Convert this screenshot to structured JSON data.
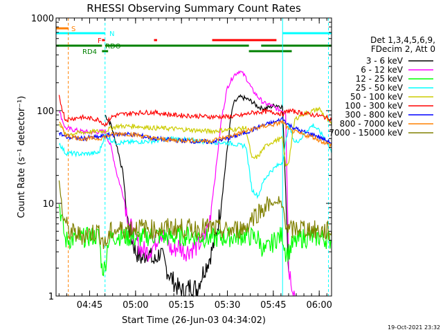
{
  "chart_data": {
    "type": "line",
    "title": "RHESSI Observing Summary Count Rates",
    "xlabel": "Start Time (26-Jun-03 04:34:02)",
    "ylabel": "Count Rate (s⁻¹ detector⁻¹)",
    "y_scale": "log",
    "ylim": [
      1,
      1000
    ],
    "xlim_minutes": [
      0,
      90
    ],
    "y_ticks": [
      {
        "value": 1,
        "label": "1"
      },
      {
        "value": 10,
        "label": "10"
      },
      {
        "value": 100,
        "label": "100"
      },
      {
        "value": 1000,
        "label": "1000"
      }
    ],
    "x_ticks": [
      {
        "value": 10.97,
        "label": "04:45"
      },
      {
        "value": 25.97,
        "label": "05:00"
      },
      {
        "value": 40.97,
        "label": "05:15"
      },
      {
        "value": 55.97,
        "label": "05:30"
      },
      {
        "value": 70.97,
        "label": "05:45"
      },
      {
        "value": 85.97,
        "label": "06:00"
      }
    ],
    "legend_header": [
      "Det 1,3,4,5,6,9,",
      "FDecim 2, Att 0"
    ],
    "series": [
      {
        "name": "3 - 6 keV",
        "color": "#000000",
        "points": [
          [
            16,
            90
          ],
          [
            18,
            70
          ],
          [
            20,
            40
          ],
          [
            22,
            20
          ],
          [
            23,
            8
          ],
          [
            24,
            5
          ],
          [
            26,
            3
          ],
          [
            28,
            2.5
          ],
          [
            30,
            3
          ],
          [
            32,
            2.3
          ],
          [
            34,
            3
          ],
          [
            36,
            2
          ],
          [
            38,
            1.5
          ],
          [
            40,
            1.2
          ],
          [
            42,
            1.1
          ],
          [
            44,
            1.3
          ],
          [
            46,
            1.2
          ],
          [
            48,
            1.8
          ],
          [
            50,
            2.5
          ],
          [
            52,
            4
          ],
          [
            54,
            10
          ],
          [
            56,
            40
          ],
          [
            57,
            80
          ],
          [
            58,
            120
          ],
          [
            60,
            140
          ],
          [
            62,
            135
          ],
          [
            64,
            125
          ],
          [
            66,
            110
          ],
          [
            68,
            105
          ],
          [
            70,
            110
          ],
          [
            72,
            115
          ],
          [
            74,
            110
          ],
          [
            76,
            1.8
          ]
        ]
      },
      {
        "name": "6 - 12 keV",
        "color": "#ff00ff",
        "points": [
          [
            1,
            100
          ],
          [
            3,
            65
          ],
          [
            8,
            60
          ],
          [
            12,
            58
          ],
          [
            16,
            60
          ],
          [
            18,
            40
          ],
          [
            20,
            20
          ],
          [
            22,
            12
          ],
          [
            24,
            6
          ],
          [
            26,
            4
          ],
          [
            28,
            3.2
          ],
          [
            30,
            3
          ],
          [
            32,
            3.5
          ],
          [
            34,
            5
          ],
          [
            36,
            4
          ],
          [
            38,
            3
          ],
          [
            40,
            3.5
          ],
          [
            42,
            3
          ],
          [
            44,
            3.2
          ],
          [
            46,
            3.4
          ],
          [
            48,
            4
          ],
          [
            50,
            6
          ],
          [
            52,
            20
          ],
          [
            54,
            80
          ],
          [
            56,
            180
          ],
          [
            58,
            240
          ],
          [
            60,
            270
          ],
          [
            62,
            230
          ],
          [
            64,
            170
          ],
          [
            66,
            140
          ],
          [
            68,
            120
          ],
          [
            70,
            115
          ],
          [
            72,
            105
          ],
          [
            74,
            100
          ],
          [
            75,
            95
          ],
          [
            76,
            2
          ],
          [
            78,
            1
          ]
        ]
      },
      {
        "name": "12 - 25 keV",
        "color": "#00ff00",
        "points": [
          [
            1,
            10
          ],
          [
            3,
            4
          ],
          [
            8,
            4.2
          ],
          [
            14,
            4.5
          ],
          [
            15,
            2
          ],
          [
            16,
            2
          ],
          [
            17,
            4
          ],
          [
            20,
            4.5
          ],
          [
            26,
            4.2
          ],
          [
            32,
            4.5
          ],
          [
            38,
            4.3
          ],
          [
            44,
            4.5
          ],
          [
            50,
            4.2
          ],
          [
            56,
            4.3
          ],
          [
            62,
            4.5
          ],
          [
            66,
            4.2
          ],
          [
            68,
            3
          ],
          [
            70,
            3.5
          ],
          [
            72,
            4.2
          ],
          [
            74,
            4.5
          ],
          [
            75,
            3
          ],
          [
            76,
            3
          ],
          [
            77,
            3.5
          ],
          [
            80,
            4.2
          ],
          [
            86,
            4.3
          ],
          [
            90,
            4
          ]
        ]
      },
      {
        "name": "25 - 50 keV",
        "color": "#00ffff",
        "points": [
          [
            1,
            45
          ],
          [
            3,
            35
          ],
          [
            8,
            34
          ],
          [
            14,
            35
          ],
          [
            16,
            55
          ],
          [
            18,
            48
          ],
          [
            20,
            45
          ],
          [
            26,
            46
          ],
          [
            32,
            47
          ],
          [
            38,
            50
          ],
          [
            44,
            48
          ],
          [
            50,
            46
          ],
          [
            56,
            45
          ],
          [
            58,
            44
          ],
          [
            60,
            42
          ],
          [
            62,
            42
          ],
          [
            64,
            14
          ],
          [
            66,
            12
          ],
          [
            68,
            18
          ],
          [
            70,
            22
          ],
          [
            72,
            25
          ],
          [
            74,
            28
          ],
          [
            76,
            70
          ],
          [
            78,
            45
          ],
          [
            80,
            50
          ],
          [
            82,
            62
          ],
          [
            84,
            70
          ],
          [
            86,
            60
          ],
          [
            88,
            50
          ],
          [
            90,
            35
          ]
        ]
      },
      {
        "name": "50 - 100 keV",
        "color": "#cccc00",
        "points": [
          [
            1,
            75
          ],
          [
            3,
            55
          ],
          [
            8,
            58
          ],
          [
            14,
            60
          ],
          [
            16,
            60
          ],
          [
            18,
            65
          ],
          [
            20,
            68
          ],
          [
            26,
            68
          ],
          [
            32,
            65
          ],
          [
            38,
            64
          ],
          [
            44,
            62
          ],
          [
            50,
            60
          ],
          [
            56,
            62
          ],
          [
            60,
            64
          ],
          [
            62,
            65
          ],
          [
            64,
            30
          ],
          [
            66,
            32
          ],
          [
            68,
            40
          ],
          [
            70,
            45
          ],
          [
            72,
            48
          ],
          [
            74,
            50
          ],
          [
            75,
            25
          ],
          [
            76,
            28
          ],
          [
            78,
            80
          ],
          [
            80,
            90
          ],
          [
            82,
            95
          ],
          [
            84,
            100
          ],
          [
            86,
            105
          ],
          [
            88,
            85
          ],
          [
            90,
            70
          ]
        ]
      },
      {
        "name": "100 - 300 keV",
        "color": "#ff0000",
        "points": [
          [
            1,
            140
          ],
          [
            3,
            80
          ],
          [
            8,
            85
          ],
          [
            14,
            80
          ],
          [
            16,
            70
          ],
          [
            18,
            85
          ],
          [
            20,
            90
          ],
          [
            26,
            95
          ],
          [
            32,
            96
          ],
          [
            38,
            90
          ],
          [
            44,
            88
          ],
          [
            50,
            86
          ],
          [
            56,
            86
          ],
          [
            60,
            88
          ],
          [
            64,
            95
          ],
          [
            68,
            98
          ],
          [
            72,
            95
          ],
          [
            74,
            92
          ],
          [
            76,
            100
          ],
          [
            80,
            95
          ],
          [
            84,
            90
          ],
          [
            86,
            88
          ],
          [
            88,
            85
          ],
          [
            90,
            80
          ]
        ]
      },
      {
        "name": "300 - 800 keV",
        "color": "#0000ff",
        "points": [
          [
            1,
            58
          ],
          [
            3,
            52
          ],
          [
            8,
            50
          ],
          [
            14,
            52
          ],
          [
            18,
            55
          ],
          [
            22,
            56
          ],
          [
            26,
            55
          ],
          [
            32,
            50
          ],
          [
            38,
            48
          ],
          [
            44,
            47
          ],
          [
            50,
            46
          ],
          [
            56,
            50
          ],
          [
            60,
            55
          ],
          [
            64,
            62
          ],
          [
            68,
            70
          ],
          [
            72,
            76
          ],
          [
            74,
            82
          ],
          [
            76,
            70
          ],
          [
            80,
            60
          ],
          [
            84,
            55
          ],
          [
            86,
            52
          ],
          [
            88,
            48
          ],
          [
            90,
            45
          ]
        ]
      },
      {
        "name": "800 - 7000 keV",
        "color": "#ff8000",
        "points": [
          [
            1,
            75
          ],
          [
            3,
            55
          ],
          [
            8,
            50
          ],
          [
            14,
            50
          ],
          [
            18,
            55
          ],
          [
            22,
            57
          ],
          [
            26,
            55
          ],
          [
            32,
            50
          ],
          [
            38,
            48
          ],
          [
            44,
            48
          ],
          [
            50,
            47
          ],
          [
            56,
            52
          ],
          [
            60,
            57
          ],
          [
            64,
            63
          ],
          [
            68,
            68
          ],
          [
            72,
            72
          ],
          [
            74,
            76
          ],
          [
            76,
            62
          ],
          [
            80,
            56
          ],
          [
            84,
            52
          ],
          [
            86,
            48
          ],
          [
            88,
            45
          ],
          [
            90,
            42
          ]
        ]
      },
      {
        "name": "7000 - 15000 keV",
        "color": "#808000",
        "points": [
          [
            1,
            18
          ],
          [
            2,
            8
          ],
          [
            4,
            5
          ],
          [
            8,
            4.5
          ],
          [
            14,
            5
          ],
          [
            16,
            3.5
          ],
          [
            18,
            5
          ],
          [
            26,
            5.5
          ],
          [
            32,
            5.2
          ],
          [
            38,
            5.5
          ],
          [
            44,
            5.3
          ],
          [
            50,
            5.5
          ],
          [
            56,
            5
          ],
          [
            62,
            5.5
          ],
          [
            64,
            7
          ],
          [
            66,
            8
          ],
          [
            68,
            9
          ],
          [
            70,
            10
          ],
          [
            72,
            10
          ],
          [
            74,
            9
          ],
          [
            76,
            5
          ],
          [
            80,
            5.5
          ],
          [
            86,
            5
          ],
          [
            90,
            5
          ]
        ]
      }
    ],
    "flag_bars": [
      {
        "label": "S",
        "color": "#ff8000",
        "level": 0,
        "segments": [
          [
            0,
            4
          ]
        ]
      },
      {
        "label": "N",
        "color": "#00ffff",
        "level": 1,
        "segments": [
          [
            0,
            16
          ],
          [
            74,
            90
          ]
        ]
      },
      {
        "label": "F",
        "color": "#ff0000",
        "level": 2,
        "segments": [
          [
            15,
            16
          ],
          [
            32,
            33
          ],
          [
            51,
            72
          ]
        ]
      },
      {
        "label": "RDO",
        "color": "#008000",
        "level": 3,
        "segments": [
          [
            0,
            15
          ],
          [
            16,
            63
          ],
          [
            67,
            90
          ]
        ]
      },
      {
        "label": "RD4",
        "color": "#008000",
        "level": 4,
        "segments": [
          [
            15,
            17
          ],
          [
            63,
            77
          ]
        ]
      }
    ],
    "vlines": [
      {
        "x": 4,
        "color": "#ff8000",
        "style": "dashed"
      },
      {
        "x": 16,
        "color": "#00ffff",
        "style": "dashed"
      },
      {
        "x": 74,
        "color": "#00ffff",
        "style": "solid"
      },
      {
        "x": 89,
        "color": "#00ffff",
        "style": "dashed"
      }
    ]
  },
  "footer_timestamp": "19-Oct-2021 23:32"
}
